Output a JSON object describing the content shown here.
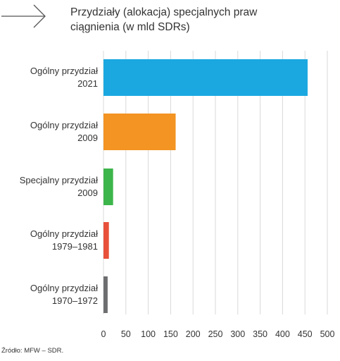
{
  "header": {
    "title_line1": "Przydziały (alokacja) specjalnych praw",
    "title_line2": "ciągnienia (w mld SDRs)"
  },
  "footer": {
    "source": "Źródło: MFW – SDR."
  },
  "icons": {
    "header_arrow": "arrow-right-icon"
  },
  "chart_data": {
    "type": "bar",
    "orientation": "horizontal",
    "title": "Przydziały (alokacja) specjalnych praw ciągnienia (w mld SDRs)",
    "xlabel": "",
    "ylabel": "",
    "xlim": [
      0,
      500
    ],
    "xticks": [
      0,
      50,
      100,
      150,
      200,
      250,
      300,
      350,
      400,
      450,
      500
    ],
    "grid": true,
    "legend": "none",
    "categories": [
      [
        "Ogólny przydział",
        "2021"
      ],
      [
        "Ogólny przydział",
        "2009"
      ],
      [
        "Specjalny przydział",
        "2009"
      ],
      [
        "Ogólny przydział",
        "1979–1981"
      ],
      [
        "Ogólny przydział",
        "1970–1972"
      ]
    ],
    "values": [
      456,
      161.2,
      21.5,
      12.1,
      9.3
    ],
    "colors": [
      "#1ba8e0",
      "#f39423",
      "#3cb54a",
      "#e8503a",
      "#6d6e70"
    ]
  }
}
